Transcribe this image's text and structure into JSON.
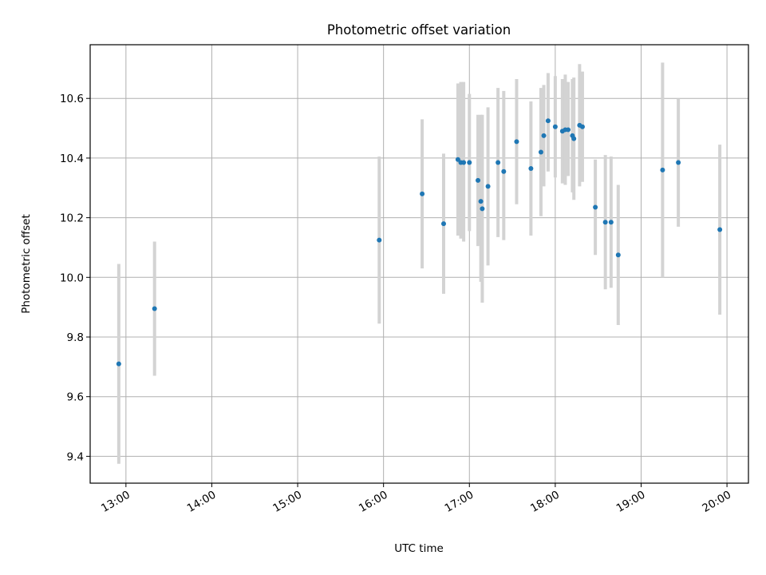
{
  "chart_data": {
    "type": "scatter",
    "title": "Photometric offset variation",
    "xlabel": "UTC time",
    "ylabel": "Photometric offset",
    "x_axis": "time",
    "xlim": [
      "12:35",
      "20:15"
    ],
    "ylim": [
      9.31,
      10.78
    ],
    "grid": true,
    "x_ticks": [
      "13:00",
      "14:00",
      "15:00",
      "16:00",
      "17:00",
      "18:00",
      "19:00",
      "20:00"
    ],
    "y_ticks": [
      "9.4",
      "9.6",
      "9.8",
      "10.0",
      "10.2",
      "10.4",
      "10.6"
    ],
    "point_color": "#1f77b4",
    "errorbar_color": "#d3d3d3",
    "series": [
      {
        "points": [
          {
            "x": "12:55",
            "y": 9.71,
            "low": 9.375,
            "high": 10.045
          },
          {
            "x": "13:20",
            "y": 9.895,
            "low": 9.67,
            "high": 10.12
          },
          {
            "x": "15:57",
            "y": 10.125,
            "low": 9.845,
            "high": 10.405
          },
          {
            "x": "16:27",
            "y": 10.28,
            "low": 10.03,
            "high": 10.53
          },
          {
            "x": "16:42",
            "y": 10.18,
            "low": 9.945,
            "high": 10.415
          },
          {
            "x": "16:52",
            "y": 10.395,
            "low": 10.14,
            "high": 10.65
          },
          {
            "x": "16:54",
            "y": 10.385,
            "low": 10.13,
            "high": 10.655
          },
          {
            "x": "16:56",
            "y": 10.385,
            "low": 10.12,
            "high": 10.655
          },
          {
            "x": "17:00",
            "y": 10.385,
            "low": 10.155,
            "high": 10.615
          },
          {
            "x": "17:06",
            "y": 10.325,
            "low": 10.105,
            "high": 10.545
          },
          {
            "x": "17:08",
            "y": 10.255,
            "low": 9.985,
            "high": 10.545
          },
          {
            "x": "17:09",
            "y": 10.23,
            "low": 9.915,
            "high": 10.545
          },
          {
            "x": "17:13",
            "y": 10.305,
            "low": 10.04,
            "high": 10.57
          },
          {
            "x": "17:20",
            "y": 10.385,
            "low": 10.135,
            "high": 10.635
          },
          {
            "x": "17:24",
            "y": 10.355,
            "low": 10.125,
            "high": 10.625
          },
          {
            "x": "17:33",
            "y": 10.455,
            "low": 10.245,
            "high": 10.665
          },
          {
            "x": "17:43",
            "y": 10.365,
            "low": 10.14,
            "high": 10.59
          },
          {
            "x": "17:50",
            "y": 10.42,
            "low": 10.205,
            "high": 10.635
          },
          {
            "x": "17:52",
            "y": 10.475,
            "low": 10.305,
            "high": 10.645
          },
          {
            "x": "17:55",
            "y": 10.525,
            "low": 10.355,
            "high": 10.685
          },
          {
            "x": "18:00",
            "y": 10.505,
            "low": 10.335,
            "high": 10.675
          },
          {
            "x": "18:05",
            "y": 10.49,
            "low": 10.315,
            "high": 10.665
          },
          {
            "x": "18:07",
            "y": 10.495,
            "low": 10.31,
            "high": 10.68
          },
          {
            "x": "18:09",
            "y": 10.495,
            "low": 10.34,
            "high": 10.655
          },
          {
            "x": "18:12",
            "y": 10.475,
            "low": 10.285,
            "high": 10.665
          },
          {
            "x": "18:13",
            "y": 10.465,
            "low": 10.26,
            "high": 10.67
          },
          {
            "x": "18:17",
            "y": 10.51,
            "low": 10.305,
            "high": 10.715
          },
          {
            "x": "18:19",
            "y": 10.505,
            "low": 10.32,
            "high": 10.69
          },
          {
            "x": "18:28",
            "y": 10.235,
            "low": 10.075,
            "high": 10.395
          },
          {
            "x": "18:35",
            "y": 10.185,
            "low": 9.96,
            "high": 10.41
          },
          {
            "x": "18:39",
            "y": 10.185,
            "low": 9.965,
            "high": 10.405
          },
          {
            "x": "18:44",
            "y": 10.075,
            "low": 9.84,
            "high": 10.31
          },
          {
            "x": "19:15",
            "y": 10.36,
            "low": 10.0,
            "high": 10.72
          },
          {
            "x": "19:26",
            "y": 10.385,
            "low": 10.17,
            "high": 10.6
          },
          {
            "x": "19:55",
            "y": 10.16,
            "low": 9.875,
            "high": 10.445
          }
        ]
      }
    ]
  }
}
